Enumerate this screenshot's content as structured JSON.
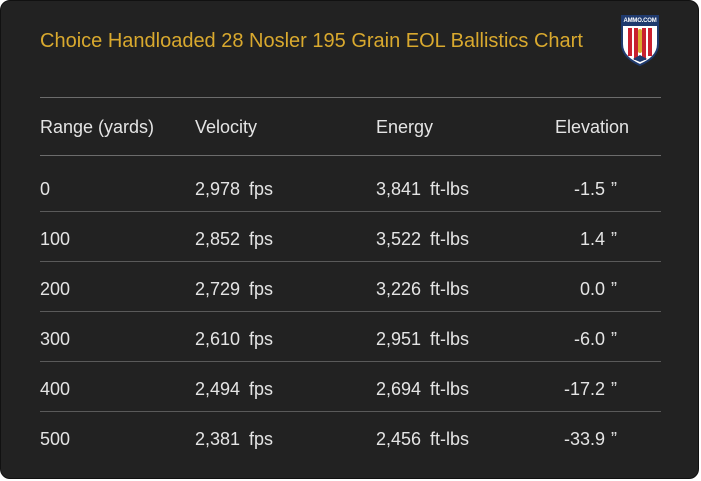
{
  "title": "Choice Handloaded 28 Nosler 195 Grain EOL Ballistics Chart",
  "logo": {
    "text": "AMMO.COM",
    "icon": "ammo-com-shield-icon",
    "colors": {
      "red": "#c8202f",
      "white": "#ffffff",
      "blue": "#1f3a6e",
      "gold": "#d9a92e"
    }
  },
  "headers": {
    "range": "Range (yards)",
    "velocity": "Velocity",
    "energy": "Energy",
    "elevation": "Elevation"
  },
  "units": {
    "velocity": "fps",
    "energy": "ft-lbs",
    "elevation": "”"
  },
  "rows": [
    {
      "range": "0",
      "velocity": "2,978",
      "energy": "3,841",
      "elevation": "-1.5"
    },
    {
      "range": "100",
      "velocity": "2,852",
      "energy": "3,522",
      "elevation": "1.4"
    },
    {
      "range": "200",
      "velocity": "2,729",
      "energy": "3,226",
      "elevation": "0.0"
    },
    {
      "range": "300",
      "velocity": "2,610",
      "energy": "2,951",
      "elevation": "-6.0"
    },
    {
      "range": "400",
      "velocity": "2,494",
      "energy": "2,694",
      "elevation": "-17.2"
    },
    {
      "range": "500",
      "velocity": "2,381",
      "energy": "2,456",
      "elevation": "-33.9"
    }
  ],
  "colors": {
    "background": "#222222",
    "title": "#d9a92e",
    "text": "#e4e4e4",
    "divider": "#5a5a5a"
  }
}
